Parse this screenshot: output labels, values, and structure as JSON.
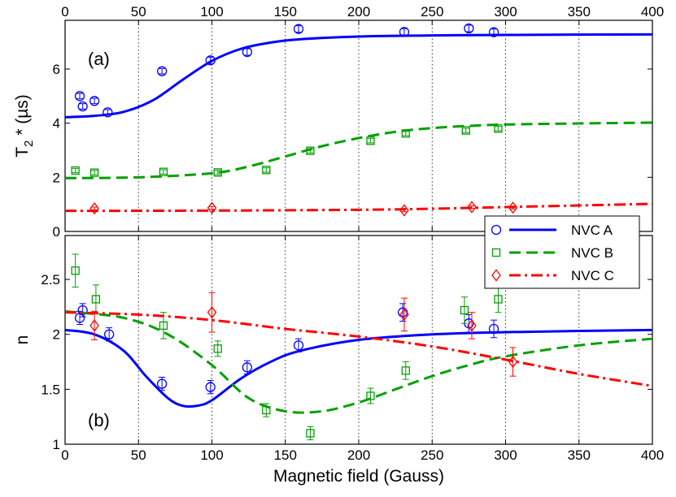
{
  "chart_data": [
    {
      "type": "scatter",
      "panel_label": "(a)",
      "ylabel": "T₂* (µs)",
      "ylabel_main": "T",
      "ylabel_sub": "2",
      "ylabel_rest": " * (µs)",
      "xlim": [
        0,
        400
      ],
      "ylim": [
        0,
        7.8
      ],
      "xticks": [
        "0",
        "50",
        "100",
        "150",
        "200",
        "250",
        "300",
        "350",
        "400"
      ],
      "yticks": [
        {
          "value": 0,
          "label": "0"
        },
        {
          "value": 2,
          "label": "2"
        },
        {
          "value": 4,
          "label": "4"
        },
        {
          "value": 6,
          "label": "6"
        }
      ],
      "grid": "vertical-dotted",
      "series": [
        {
          "name": "NVC A",
          "color": "#0000ff",
          "marker": "circle",
          "line_style": "solid",
          "points": [
            [
              10,
              5.0
            ],
            [
              12,
              4.62
            ],
            [
              20,
              4.82
            ],
            [
              29,
              4.4
            ],
            [
              66,
              5.92
            ],
            [
              99,
              6.32
            ],
            [
              124,
              6.63
            ],
            [
              159,
              7.48
            ],
            [
              231,
              7.37
            ],
            [
              275,
              7.5
            ],
            [
              292,
              7.36
            ]
          ],
          "errors": [
            0.1,
            0.1,
            0.1,
            0.1,
            0.1,
            0.12,
            0.12,
            0.12,
            0.12,
            0.12,
            0.12
          ],
          "curve": [
            [
              0,
              4.22
            ],
            [
              20,
              4.27
            ],
            [
              40,
              4.42
            ],
            [
              60,
              4.85
            ],
            [
              80,
              5.6
            ],
            [
              100,
              6.3
            ],
            [
              120,
              6.75
            ],
            [
              140,
              6.98
            ],
            [
              160,
              7.1
            ],
            [
              200,
              7.2
            ],
            [
              250,
              7.24
            ],
            [
              300,
              7.26
            ],
            [
              400,
              7.28
            ]
          ]
        },
        {
          "name": "NVC B",
          "color": "#00a000",
          "marker": "square",
          "line_style": "dashed",
          "points": [
            [
              7,
              2.25
            ],
            [
              20,
              2.17
            ],
            [
              67,
              2.2
            ],
            [
              104,
              2.18
            ],
            [
              137,
              2.27
            ],
            [
              167,
              2.98
            ],
            [
              208,
              3.35
            ],
            [
              232,
              3.62
            ],
            [
              273,
              3.73
            ],
            [
              295,
              3.8
            ]
          ],
          "errors": [
            0.08,
            0.08,
            0.08,
            0.08,
            0.08,
            0.08,
            0.08,
            0.08,
            0.08,
            0.08
          ],
          "curve": [
            [
              0,
              1.97
            ],
            [
              50,
              2.0
            ],
            [
              100,
              2.15
            ],
            [
              125,
              2.4
            ],
            [
              150,
              2.77
            ],
            [
              175,
              3.15
            ],
            [
              200,
              3.45
            ],
            [
              225,
              3.68
            ],
            [
              250,
              3.82
            ],
            [
              275,
              3.9
            ],
            [
              300,
              3.95
            ],
            [
              350,
              3.99
            ],
            [
              400,
              4.02
            ]
          ]
        },
        {
          "name": "NVC C",
          "color": "#ff0000",
          "marker": "diamond",
          "line_style": "dashdot",
          "points": [
            [
              20,
              0.85
            ],
            [
              100,
              0.87
            ],
            [
              231,
              0.78
            ],
            [
              277,
              0.9
            ],
            [
              305,
              0.88
            ]
          ],
          "errors": [
            0.05,
            0.05,
            0.05,
            0.05,
            0.05
          ],
          "curve": [
            [
              0,
              0.76
            ],
            [
              100,
              0.77
            ],
            [
              200,
              0.8
            ],
            [
              250,
              0.84
            ],
            [
              300,
              0.9
            ],
            [
              350,
              0.96
            ],
            [
              400,
              1.02
            ]
          ]
        }
      ]
    },
    {
      "type": "scatter",
      "panel_label": "(b)",
      "ylabel": "n",
      "xlabel": "Magnetic field (Gauss)",
      "xlim": [
        0,
        400
      ],
      "ylim": [
        1.0,
        2.9
      ],
      "xticks": [
        "0",
        "50",
        "100",
        "150",
        "200",
        "250",
        "300",
        "350",
        "400"
      ],
      "yticks": [
        {
          "value": 1,
          "label": "1"
        },
        {
          "value": 1.5,
          "label": "1.5"
        },
        {
          "value": 2,
          "label": "2"
        },
        {
          "value": 2.5,
          "label": "2.5"
        }
      ],
      "grid": "vertical-dotted",
      "series": [
        {
          "name": "NVC A",
          "color": "#0000ff",
          "marker": "circle",
          "line_style": "solid",
          "points": [
            [
              10,
              2.15
            ],
            [
              12,
              2.22
            ],
            [
              30,
              2.0
            ],
            [
              66,
              1.55
            ],
            [
              99,
              1.52
            ],
            [
              124,
              1.7
            ],
            [
              159,
              1.9
            ],
            [
              230,
              2.2
            ],
            [
              275,
              2.1
            ],
            [
              292,
              2.05
            ]
          ],
          "errors": [
            0.06,
            0.06,
            0.06,
            0.06,
            0.06,
            0.06,
            0.06,
            0.08,
            0.08,
            0.08
          ],
          "curve": [
            [
              0,
              2.04
            ],
            [
              20,
              2.0
            ],
            [
              40,
              1.85
            ],
            [
              55,
              1.62
            ],
            [
              70,
              1.42
            ],
            [
              80,
              1.35
            ],
            [
              90,
              1.35
            ],
            [
              100,
              1.4
            ],
            [
              120,
              1.6
            ],
            [
              140,
              1.75
            ],
            [
              160,
              1.85
            ],
            [
              200,
              1.95
            ],
            [
              250,
              2.0
            ],
            [
              300,
              2.02
            ],
            [
              400,
              2.04
            ]
          ]
        },
        {
          "name": "NVC B",
          "color": "#00a000",
          "marker": "square",
          "line_style": "dashed",
          "points": [
            [
              7,
              2.58
            ],
            [
              21,
              2.32
            ],
            [
              67,
              2.08
            ],
            [
              104,
              1.87
            ],
            [
              137,
              1.31
            ],
            [
              167,
              1.1
            ],
            [
              208,
              1.44
            ],
            [
              232,
              1.67
            ],
            [
              272,
              2.22
            ],
            [
              295,
              2.32
            ]
          ],
          "errors": [
            0.15,
            0.13,
            0.12,
            0.07,
            0.06,
            0.06,
            0.07,
            0.08,
            0.12,
            0.12
          ],
          "curve": [
            [
              0,
              2.21
            ],
            [
              40,
              2.15
            ],
            [
              70,
              2.0
            ],
            [
              100,
              1.72
            ],
            [
              125,
              1.42
            ],
            [
              150,
              1.3
            ],
            [
              175,
              1.3
            ],
            [
              200,
              1.38
            ],
            [
              225,
              1.5
            ],
            [
              250,
              1.62
            ],
            [
              275,
              1.72
            ],
            [
              300,
              1.8
            ],
            [
              350,
              1.9
            ],
            [
              400,
              1.96
            ]
          ]
        },
        {
          "name": "NVC C",
          "color": "#ff0000",
          "marker": "diamond",
          "line_style": "dashdot",
          "points": [
            [
              20,
              2.08
            ],
            [
              100,
              2.2
            ],
            [
              231,
              2.18
            ],
            [
              277,
              2.08
            ],
            [
              305,
              1.75
            ]
          ],
          "errors": [
            0.13,
            0.18,
            0.15,
            0.12,
            0.13
          ],
          "curve": [
            [
              0,
              2.2
            ],
            [
              50,
              2.18
            ],
            [
              100,
              2.13
            ],
            [
              150,
              2.05
            ],
            [
              200,
              1.98
            ],
            [
              250,
              1.89
            ],
            [
              300,
              1.77
            ],
            [
              350,
              1.64
            ],
            [
              400,
              1.53
            ]
          ]
        }
      ]
    }
  ],
  "legend": {
    "placement": "top-right of panel (b)",
    "entries": [
      "NVC A",
      "NVC B",
      "NVC C"
    ]
  }
}
